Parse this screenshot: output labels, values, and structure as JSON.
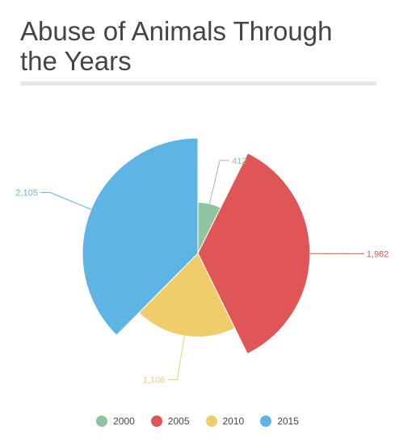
{
  "chart_data": {
    "type": "pie",
    "title": "Abuse of Animals Through the Years",
    "categories": [
      "2000",
      "2005",
      "2010",
      "2015"
    ],
    "values": [
      412,
      1982,
      1106,
      2105
    ],
    "value_labels": [
      "412",
      "1,982",
      "1,106",
      "2,105"
    ],
    "colors": [
      "#90c4a0",
      "#e05555",
      "#f0cc6a",
      "#5eb4e2"
    ],
    "legend_position": "bottom",
    "style": "variable-radius rose pie"
  }
}
